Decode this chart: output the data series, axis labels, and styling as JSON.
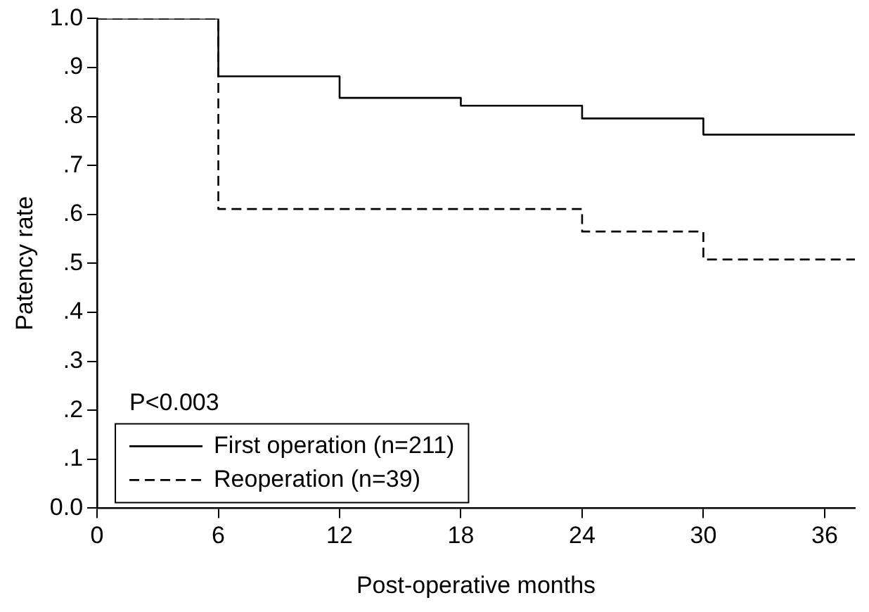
{
  "chart_data": {
    "type": "step",
    "xlabel": "Post-operative months",
    "ylabel": "Patency rate",
    "annotations": [
      "P<0.003"
    ],
    "xlim": [
      0,
      37.5
    ],
    "xticks": [
      0,
      6,
      12,
      18,
      24,
      30,
      36
    ],
    "ylim": [
      0,
      1
    ],
    "yticks": [
      {
        "value": 0,
        "label": "0.0"
      },
      {
        "value": 0.1,
        "label": ".1"
      },
      {
        "value": 0.2,
        "label": ".2"
      },
      {
        "value": 0.3,
        "label": ".3"
      },
      {
        "value": 0.4,
        "label": ".4"
      },
      {
        "value": 0.5,
        "label": ".5"
      },
      {
        "value": 0.6,
        "label": ".6"
      },
      {
        "value": 0.7,
        "label": ".7"
      },
      {
        "value": 0.8,
        "label": ".8"
      },
      {
        "value": 0.9,
        "label": ".9"
      },
      {
        "value": 1,
        "label": "1.0"
      }
    ],
    "grid": false,
    "legend": "bottom left",
    "marker": "none",
    "series": [
      {
        "name": "First operation (n=211)",
        "color": "#000000",
        "line_style": "solid",
        "x": [
          0,
          6,
          12,
          18,
          24,
          30,
          37.5
        ],
        "values": [
          1,
          0.882,
          0.838,
          0.822,
          0.796,
          0.763,
          0.763
        ]
      },
      {
        "name": "Reoperation (n=39)",
        "color": "#000000",
        "line_style": "dashed",
        "x": [
          0,
          6,
          24,
          30,
          37.5
        ],
        "values": [
          1,
          0.611,
          0.565,
          0.508,
          0.508
        ]
      }
    ]
  }
}
